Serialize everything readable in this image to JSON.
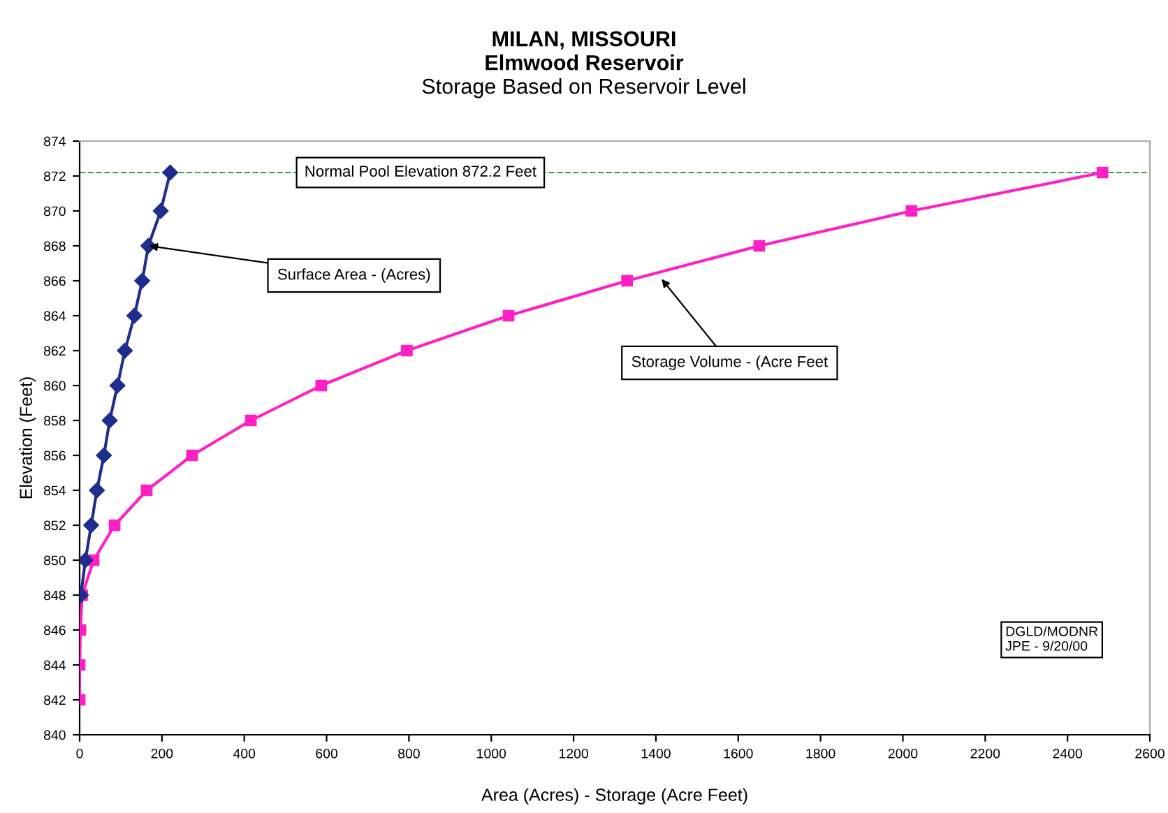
{
  "chart_data": {
    "type": "line",
    "title": "MILAN, MISSOURI\nElmwood Reservoir",
    "subtitle": "Storage Based on Reservoir Level",
    "xlabel": "Area (Acres) - Storage (Acre Feet)",
    "ylabel": "Elevation (Feet)",
    "series": [
      {
        "color": "#1f2e8c",
        "marker": "diamond",
        "x": [
          3,
          14,
          28,
          42,
          59,
          73,
          92,
          110,
          133,
          152,
          167,
          197,
          220
        ],
        "values": [
          848,
          850,
          852,
          854,
          856,
          858,
          860,
          862,
          864,
          866,
          868,
          870,
          872.2
        ]
      },
      {
        "color": "#ff1fc4",
        "marker": "square",
        "x": [
          0,
          0,
          2,
          6,
          34,
          85,
          163,
          273,
          416,
          587,
          795,
          1042,
          1330,
          1651,
          2021,
          2485
        ],
        "values": [
          842,
          844,
          846,
          848,
          850,
          852,
          854,
          856,
          858,
          860,
          862,
          864,
          866,
          868,
          870,
          872.2
        ]
      }
    ],
    "xlim": [
      0,
      2600
    ],
    "xticks": [
      0,
      200,
      400,
      600,
      800,
      1000,
      1200,
      1400,
      1600,
      1800,
      2000,
      2200,
      2400,
      2600
    ],
    "ylim": [
      840,
      874
    ],
    "yticks": [
      840,
      842,
      844,
      846,
      848,
      850,
      852,
      854,
      856,
      858,
      860,
      862,
      864,
      866,
      868,
      870,
      872,
      874
    ],
    "ref_lines": [
      {
        "axis": "y",
        "value": 872.2,
        "label": "Normal Pool Elevation 872.2 Feet",
        "color": "#2e9e4f",
        "line_style": "dashed"
      }
    ],
    "annotations": [
      {
        "text": "Surface Area - (Acres)",
        "x": 169,
        "y": 868
      },
      {
        "text": "Storage Volume - (Acre Feet",
        "x": 1414,
        "y": 866.1
      },
      "DGLD/MODNR\nJPE - 9/20/00"
    ],
    "grid": false,
    "legend": false
  }
}
